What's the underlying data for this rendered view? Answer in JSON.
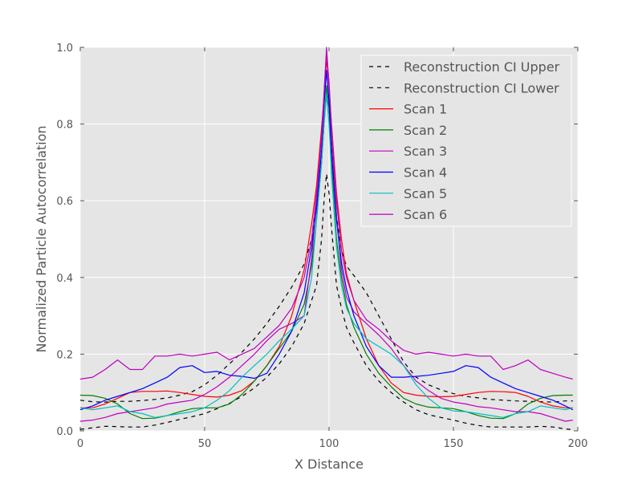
{
  "chart_data": {
    "type": "line",
    "title": "",
    "xlabel": "X Distance",
    "ylabel": "Normalized Particle Autocorrelation",
    "xlim": [
      0,
      200
    ],
    "ylim": [
      0,
      1.0
    ],
    "x_ticks": [
      0,
      50,
      100,
      150,
      200
    ],
    "y_ticks": [
      0.0,
      0.2,
      0.4,
      0.6,
      0.8,
      1.0
    ],
    "x_tick_labels": [
      "0",
      "50",
      "100",
      "150",
      "200"
    ],
    "y_tick_labels": [
      "0.0",
      "0.2",
      "0.4",
      "0.6",
      "0.8",
      "1.0"
    ],
    "grid": true,
    "legend_position": "top-right",
    "x": [
      0,
      5,
      10,
      15,
      20,
      25,
      30,
      35,
      40,
      45,
      50,
      55,
      60,
      65,
      70,
      75,
      80,
      85,
      90,
      93,
      95,
      97,
      98,
      99,
      100,
      101,
      103,
      105,
      107,
      110,
      115,
      120,
      125,
      130,
      135,
      140,
      145,
      150,
      155,
      160,
      165,
      170,
      175,
      180,
      185,
      190,
      195,
      198
    ],
    "series": [
      {
        "name": "Reconstruction CI Upper",
        "color": "#000000",
        "dash": true,
        "values": [
          0.08,
          0.076,
          0.075,
          0.077,
          0.077,
          0.079,
          0.082,
          0.086,
          0.093,
          0.102,
          0.12,
          0.145,
          0.175,
          0.205,
          0.24,
          0.28,
          0.325,
          0.375,
          0.435,
          0.5,
          0.59,
          0.7,
          0.8,
          0.88,
          0.84,
          0.74,
          0.56,
          0.47,
          0.43,
          0.405,
          0.36,
          0.3,
          0.24,
          0.18,
          0.14,
          0.12,
          0.107,
          0.097,
          0.09,
          0.086,
          0.082,
          0.08,
          0.078,
          0.077,
          0.076,
          0.075,
          0.078,
          0.078
        ]
      },
      {
        "name": "Reconstruction CI Lower",
        "color": "#000000",
        "dash": true,
        "values": [
          0.004,
          0.008,
          0.012,
          0.011,
          0.01,
          0.01,
          0.015,
          0.022,
          0.03,
          0.037,
          0.045,
          0.058,
          0.072,
          0.09,
          0.112,
          0.14,
          0.175,
          0.22,
          0.28,
          0.34,
          0.38,
          0.5,
          0.6,
          0.67,
          0.62,
          0.53,
          0.38,
          0.32,
          0.27,
          0.23,
          0.17,
          0.13,
          0.1,
          0.075,
          0.055,
          0.042,
          0.035,
          0.028,
          0.02,
          0.014,
          0.01,
          0.01,
          0.01,
          0.01,
          0.012,
          0.01,
          0.005,
          0.003
        ]
      },
      {
        "name": "Scan 1",
        "color": "#ff0000",
        "dash": false,
        "values": [
          0.06,
          0.06,
          0.07,
          0.085,
          0.1,
          0.103,
          0.103,
          0.104,
          0.1,
          0.095,
          0.09,
          0.088,
          0.093,
          0.105,
          0.13,
          0.17,
          0.22,
          0.3,
          0.42,
          0.54,
          0.64,
          0.79,
          0.87,
          0.97,
          0.9,
          0.8,
          0.62,
          0.5,
          0.41,
          0.34,
          0.24,
          0.17,
          0.125,
          0.1,
          0.093,
          0.09,
          0.089,
          0.09,
          0.095,
          0.1,
          0.103,
          0.102,
          0.1,
          0.09,
          0.075,
          0.065,
          0.06,
          0.06
        ]
      },
      {
        "name": "Scan 2",
        "color": "#008000",
        "dash": false,
        "values": [
          0.093,
          0.092,
          0.085,
          0.07,
          0.045,
          0.032,
          0.033,
          0.04,
          0.05,
          0.058,
          0.06,
          0.06,
          0.07,
          0.095,
          0.13,
          0.17,
          0.215,
          0.26,
          0.33,
          0.43,
          0.55,
          0.7,
          0.8,
          0.9,
          0.84,
          0.7,
          0.5,
          0.4,
          0.33,
          0.27,
          0.2,
          0.15,
          0.115,
          0.085,
          0.07,
          0.062,
          0.06,
          0.058,
          0.05,
          0.04,
          0.033,
          0.032,
          0.045,
          0.07,
          0.085,
          0.092,
          0.093,
          0.093
        ]
      },
      {
        "name": "Scan 3",
        "color": "#bf00bf",
        "dash": false,
        "values": [
          0.025,
          0.028,
          0.035,
          0.045,
          0.05,
          0.055,
          0.06,
          0.07,
          0.075,
          0.08,
          0.095,
          0.115,
          0.14,
          0.17,
          0.2,
          0.235,
          0.265,
          0.28,
          0.3,
          0.45,
          0.6,
          0.77,
          0.88,
          1.0,
          0.9,
          0.78,
          0.56,
          0.42,
          0.35,
          0.31,
          0.28,
          0.25,
          0.215,
          0.17,
          0.13,
          0.105,
          0.085,
          0.075,
          0.07,
          0.063,
          0.06,
          0.055,
          0.05,
          0.05,
          0.045,
          0.035,
          0.025,
          0.028
        ]
      },
      {
        "name": "Scan 4",
        "color": "#0000ff",
        "dash": false,
        "values": [
          0.055,
          0.065,
          0.08,
          0.09,
          0.1,
          0.11,
          0.125,
          0.14,
          0.165,
          0.17,
          0.152,
          0.155,
          0.145,
          0.142,
          0.137,
          0.15,
          0.2,
          0.26,
          0.36,
          0.48,
          0.58,
          0.73,
          0.85,
          0.94,
          0.86,
          0.73,
          0.55,
          0.44,
          0.37,
          0.3,
          0.22,
          0.17,
          0.14,
          0.14,
          0.142,
          0.145,
          0.15,
          0.155,
          0.17,
          0.165,
          0.14,
          0.125,
          0.11,
          0.1,
          0.09,
          0.08,
          0.065,
          0.055
        ]
      },
      {
        "name": "Scan 5",
        "color": "#00bfbf",
        "dash": false,
        "values": [
          0.06,
          0.055,
          0.06,
          0.065,
          0.05,
          0.045,
          0.035,
          0.04,
          0.045,
          0.05,
          0.06,
          0.08,
          0.105,
          0.14,
          0.17,
          0.2,
          0.235,
          0.265,
          0.3,
          0.4,
          0.55,
          0.7,
          0.8,
          0.88,
          0.8,
          0.67,
          0.48,
          0.38,
          0.32,
          0.28,
          0.24,
          0.22,
          0.2,
          0.17,
          0.12,
          0.085,
          0.06,
          0.052,
          0.05,
          0.045,
          0.04,
          0.035,
          0.045,
          0.05,
          0.065,
          0.06,
          0.055,
          0.06
        ]
      },
      {
        "name": "Scan 6",
        "color": "#bf00bf",
        "dash": false,
        "values": [
          0.135,
          0.14,
          0.16,
          0.185,
          0.16,
          0.16,
          0.195,
          0.195,
          0.2,
          0.195,
          0.2,
          0.205,
          0.185,
          0.2,
          0.215,
          0.245,
          0.275,
          0.32,
          0.4,
          0.5,
          0.62,
          0.76,
          0.88,
          0.99,
          0.91,
          0.79,
          0.6,
          0.47,
          0.4,
          0.34,
          0.29,
          0.265,
          0.235,
          0.21,
          0.2,
          0.205,
          0.2,
          0.195,
          0.2,
          0.195,
          0.195,
          0.16,
          0.17,
          0.185,
          0.16,
          0.15,
          0.14,
          0.135
        ]
      }
    ]
  }
}
